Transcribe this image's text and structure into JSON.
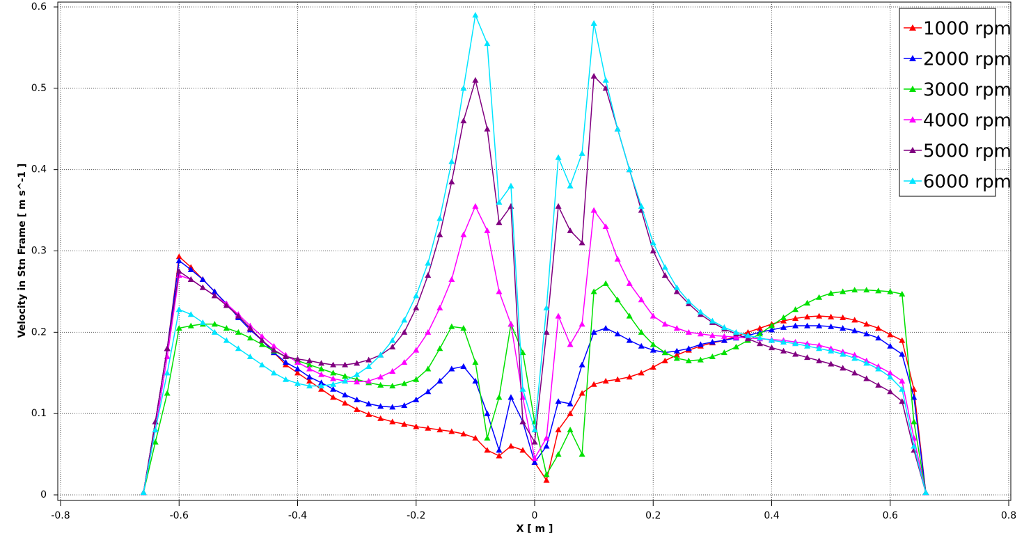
{
  "chart_data": {
    "type": "line",
    "x_label": "X [ m ]",
    "y_label": "Velocity in Stn Frame [ m s^-1 ]",
    "x": [
      -0.66,
      -0.64,
      -0.62,
      -0.6,
      -0.58,
      -0.56,
      -0.54,
      -0.52,
      -0.5,
      -0.48,
      -0.46,
      -0.44,
      -0.42,
      -0.4,
      -0.38,
      -0.36,
      -0.34,
      -0.32,
      -0.3,
      -0.28,
      -0.26,
      -0.24,
      -0.22,
      -0.2,
      -0.18,
      -0.16,
      -0.14,
      -0.12,
      -0.1,
      -0.08,
      -0.06,
      -0.04,
      -0.02,
      0,
      0.02,
      0.04,
      0.06,
      0.08,
      0.1,
      0.12,
      0.14,
      0.16,
      0.18,
      0.2,
      0.22,
      0.24,
      0.26,
      0.28,
      0.3,
      0.32,
      0.34,
      0.36,
      0.38,
      0.4,
      0.42,
      0.44,
      0.46,
      0.48,
      0.5,
      0.52,
      0.54,
      0.56,
      0.58,
      0.6,
      0.62,
      0.64,
      0.66
    ],
    "series": [
      {
        "name": "1000 rpm",
        "color": "#ff0000",
        "values": [
          0.003,
          0.09,
          0.18,
          0.293,
          0.28,
          0.265,
          0.25,
          0.235,
          0.22,
          0.205,
          0.19,
          0.175,
          0.16,
          0.15,
          0.14,
          0.13,
          0.12,
          0.113,
          0.105,
          0.099,
          0.094,
          0.09,
          0.087,
          0.084,
          0.082,
          0.08,
          0.078,
          0.075,
          0.07,
          0.055,
          0.048,
          0.06,
          0.055,
          0.04,
          0.018,
          0.08,
          0.1,
          0.125,
          0.136,
          0.14,
          0.142,
          0.145,
          0.15,
          0.157,
          0.165,
          0.172,
          0.178,
          0.183,
          0.187,
          0.19,
          0.195,
          0.2,
          0.205,
          0.21,
          0.214,
          0.217,
          0.219,
          0.22,
          0.219,
          0.218,
          0.215,
          0.21,
          0.205,
          0.197,
          0.19,
          0.13,
          0.003
        ]
      },
      {
        "name": "2000 rpm",
        "color": "#0000ff",
        "values": [
          0.003,
          0.09,
          0.18,
          0.288,
          0.277,
          0.265,
          0.25,
          0.235,
          0.218,
          0.203,
          0.19,
          0.175,
          0.163,
          0.155,
          0.145,
          0.138,
          0.13,
          0.123,
          0.117,
          0.112,
          0.109,
          0.108,
          0.11,
          0.117,
          0.127,
          0.14,
          0.155,
          0.158,
          0.14,
          0.1,
          0.055,
          0.12,
          0.09,
          0.04,
          0.06,
          0.115,
          0.112,
          0.16,
          0.2,
          0.205,
          0.198,
          0.19,
          0.183,
          0.178,
          0.175,
          0.177,
          0.18,
          0.185,
          0.188,
          0.19,
          0.193,
          0.196,
          0.2,
          0.203,
          0.206,
          0.208,
          0.208,
          0.208,
          0.207,
          0.205,
          0.202,
          0.198,
          0.193,
          0.183,
          0.173,
          0.12,
          0.003
        ]
      },
      {
        "name": "3000 rpm",
        "color": "#00e000",
        "values": [
          0.003,
          0.065,
          0.125,
          0.205,
          0.208,
          0.21,
          0.21,
          0.205,
          0.2,
          0.193,
          0.185,
          0.177,
          0.17,
          0.165,
          0.16,
          0.155,
          0.15,
          0.146,
          0.142,
          0.138,
          0.135,
          0.134,
          0.137,
          0.142,
          0.155,
          0.18,
          0.207,
          0.205,
          0.163,
          0.07,
          0.12,
          0.21,
          0.175,
          0.09,
          0.025,
          0.05,
          0.08,
          0.05,
          0.25,
          0.26,
          0.24,
          0.22,
          0.2,
          0.185,
          0.175,
          0.168,
          0.165,
          0.166,
          0.17,
          0.175,
          0.182,
          0.19,
          0.198,
          0.208,
          0.218,
          0.228,
          0.236,
          0.243,
          0.248,
          0.25,
          0.252,
          0.252,
          0.251,
          0.25,
          0.247,
          0.09,
          0.003
        ]
      },
      {
        "name": "4000 rpm",
        "color": "#ff00ff",
        "values": [
          0.003,
          0.08,
          0.17,
          0.27,
          0.265,
          0.255,
          0.245,
          0.235,
          0.222,
          0.208,
          0.195,
          0.183,
          0.172,
          0.163,
          0.155,
          0.148,
          0.143,
          0.14,
          0.139,
          0.14,
          0.145,
          0.152,
          0.163,
          0.178,
          0.2,
          0.23,
          0.265,
          0.32,
          0.355,
          0.325,
          0.25,
          0.21,
          0.12,
          0.045,
          0.07,
          0.22,
          0.185,
          0.21,
          0.35,
          0.33,
          0.29,
          0.26,
          0.24,
          0.22,
          0.21,
          0.205,
          0.2,
          0.198,
          0.196,
          0.195,
          0.194,
          0.193,
          0.192,
          0.191,
          0.19,
          0.188,
          0.186,
          0.184,
          0.18,
          0.176,
          0.172,
          0.165,
          0.158,
          0.15,
          0.14,
          0.07,
          0.003
        ]
      },
      {
        "name": "5000 rpm",
        "color": "#800080",
        "values": [
          0.003,
          0.09,
          0.18,
          0.275,
          0.265,
          0.255,
          0.245,
          0.233,
          0.22,
          0.205,
          0.19,
          0.178,
          0.17,
          0.167,
          0.165,
          0.162,
          0.16,
          0.16,
          0.162,
          0.166,
          0.172,
          0.182,
          0.2,
          0.23,
          0.27,
          0.32,
          0.385,
          0.46,
          0.51,
          0.45,
          0.335,
          0.355,
          0.09,
          0.065,
          0.2,
          0.355,
          0.325,
          0.31,
          0.515,
          0.5,
          0.45,
          0.4,
          0.35,
          0.3,
          0.27,
          0.25,
          0.235,
          0.222,
          0.212,
          0.204,
          0.198,
          0.192,
          0.186,
          0.181,
          0.177,
          0.173,
          0.169,
          0.165,
          0.161,
          0.156,
          0.15,
          0.143,
          0.135,
          0.127,
          0.115,
          0.055,
          0.003
        ]
      },
      {
        "name": "6000 rpm",
        "color": "#00e5ff",
        "values": [
          0.003,
          0.08,
          0.15,
          0.228,
          0.222,
          0.212,
          0.2,
          0.19,
          0.18,
          0.17,
          0.16,
          0.15,
          0.142,
          0.137,
          0.134,
          0.134,
          0.136,
          0.14,
          0.148,
          0.158,
          0.172,
          0.19,
          0.215,
          0.245,
          0.285,
          0.34,
          0.41,
          0.5,
          0.59,
          0.555,
          0.36,
          0.38,
          0.13,
          0.08,
          0.23,
          0.415,
          0.38,
          0.42,
          0.58,
          0.51,
          0.45,
          0.4,
          0.355,
          0.31,
          0.28,
          0.255,
          0.238,
          0.225,
          0.214,
          0.206,
          0.2,
          0.196,
          0.193,
          0.19,
          0.188,
          0.186,
          0.183,
          0.18,
          0.177,
          0.173,
          0.168,
          0.162,
          0.155,
          0.145,
          0.13,
          0.06,
          0.003
        ]
      }
    ],
    "xlim": [
      -0.8,
      0.8
    ],
    "xticks": [
      -0.8,
      -0.6,
      -0.4,
      -0.2,
      0,
      0.2,
      0.4,
      0.6,
      0.8
    ],
    "ylim": [
      0,
      0.6
    ],
    "yticks": [
      0,
      0.1,
      0.2,
      0.3,
      0.4,
      0.5,
      0.6
    ],
    "grid": true,
    "legend": "upper right",
    "marker": "triangle"
  }
}
